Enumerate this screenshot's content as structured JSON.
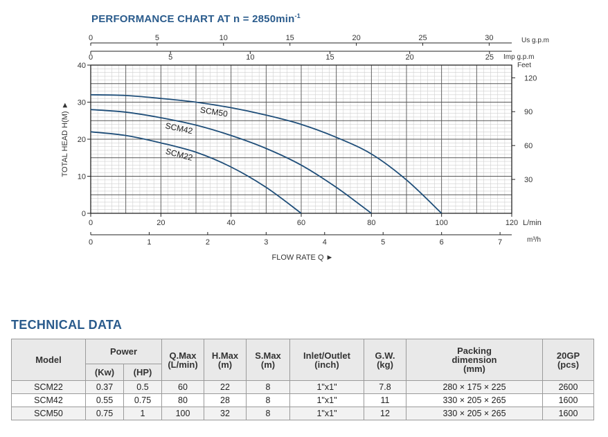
{
  "title": {
    "prefix": "PERFORMANCE CHART AT n = 2850min",
    "sup": "-1"
  },
  "chart_data": {
    "type": "line",
    "title": "PERFORMANCE CHART AT n = 2850min-1",
    "xlabel": "FLOW RATE Q",
    "ylabel": "TOTAL HEAD H(M)",
    "xlim": [
      0,
      120
    ],
    "ylim": [
      0,
      40
    ],
    "grid": true,
    "x_unit": "L/min",
    "x_ticks": [
      "0",
      "20",
      "40",
      "60",
      "80",
      "100",
      "120"
    ],
    "y_ticks": [
      "0",
      "10",
      "20",
      "30",
      "40"
    ],
    "secondary_axes": {
      "us_gpm": {
        "unit": "Us g.p.m",
        "ticks": [
          "0",
          "5",
          "10",
          "15",
          "20",
          "25",
          "30"
        ]
      },
      "imp_gpm": {
        "unit": "Imp g.p.m",
        "ticks": [
          "0",
          "5",
          "10",
          "15",
          "20",
          "25"
        ]
      },
      "m3h": {
        "unit": "m³/h",
        "ticks": [
          "0",
          "1",
          "2",
          "3",
          "4",
          "5",
          "6",
          "7"
        ]
      },
      "feet": {
        "unit": "Feet",
        "ticks": [
          "30",
          "60",
          "90",
          "120"
        ]
      }
    },
    "series": [
      {
        "name": "SCM50",
        "color": "#1f4e79",
        "x": [
          0,
          10,
          20,
          30,
          40,
          50,
          60,
          70,
          80,
          90,
          100
        ],
        "y": [
          32,
          31.8,
          31,
          30,
          28.5,
          26.5,
          24,
          20.5,
          16,
          9,
          0
        ]
      },
      {
        "name": "SCM42",
        "color": "#1f4e79",
        "x": [
          0,
          10,
          20,
          30,
          40,
          50,
          60,
          70,
          80
        ],
        "y": [
          28,
          27.3,
          25.8,
          23.8,
          21,
          17.5,
          13,
          7,
          0
        ]
      },
      {
        "name": "SCM22",
        "color": "#1f4e79",
        "x": [
          0,
          10,
          20,
          30,
          40,
          50,
          60
        ],
        "y": [
          22,
          21,
          19,
          16.5,
          12.5,
          7,
          0
        ]
      }
    ]
  },
  "technical": {
    "title": "TECHNICAL DATA",
    "headers": {
      "model": "Model",
      "power": "Power",
      "kw": "(Kw)",
      "hp": "(HP)",
      "qmax": "Q.Max",
      "qmax_unit": "(L/min)",
      "hmax": "H.Max",
      "hmax_unit": "(m)",
      "smax": "S.Max",
      "smax_unit": "(m)",
      "inlet": "Inlet/Outlet",
      "inlet_unit": "(inch)",
      "gw": "G.W.",
      "gw_unit": "(kg)",
      "packing": "Packing",
      "packing2": "dimension",
      "packing_unit": "(mm)",
      "gp": "20GP",
      "gp_unit": "(pcs)"
    },
    "rows": [
      [
        "SCM22",
        "0.37",
        "0.5",
        "60",
        "22",
        "8",
        "1\"x1\"",
        "7.8",
        "280 × 175 × 225",
        "2600"
      ],
      [
        "SCM42",
        "0.55",
        "0.75",
        "80",
        "28",
        "8",
        "1\"x1\"",
        "11",
        "330 × 205 × 265",
        "1600"
      ],
      [
        "SCM50",
        "0.75",
        "1",
        "100",
        "32",
        "8",
        "1\"x1\"",
        "12",
        "330 × 205 × 265",
        "1600"
      ]
    ]
  }
}
